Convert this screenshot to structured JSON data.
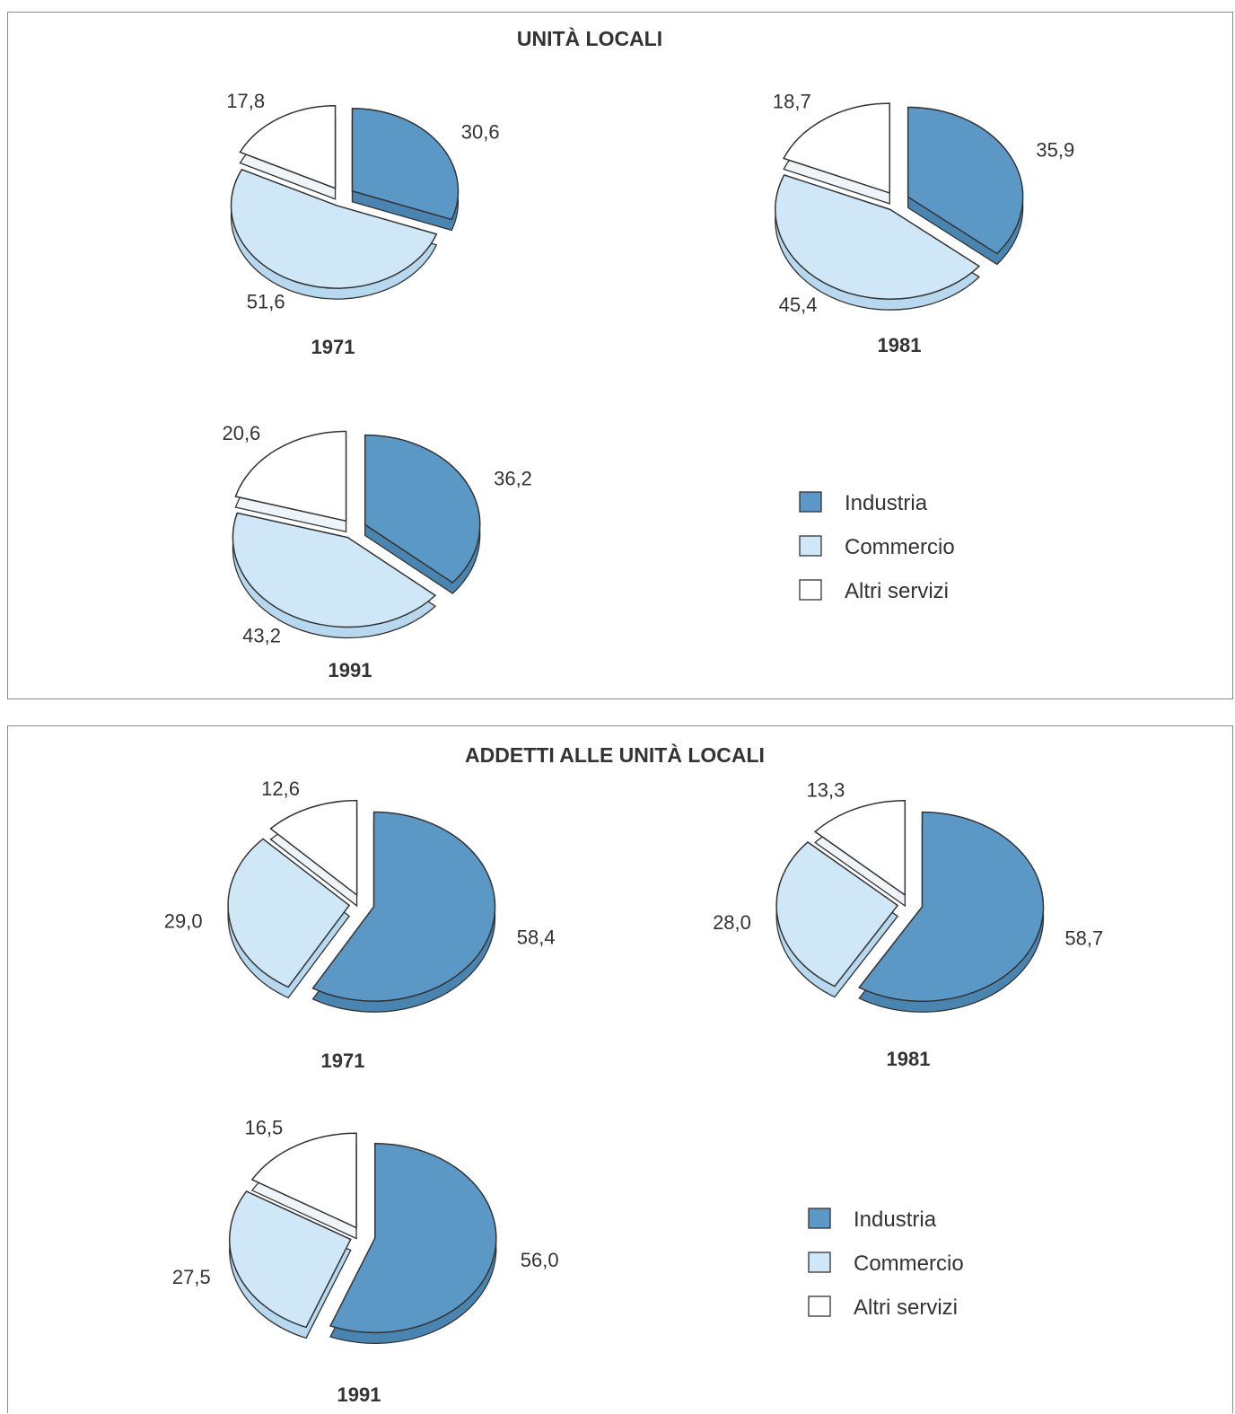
{
  "colors": {
    "Industria": "#5b98c6",
    "Industria_side": "#4a84b1",
    "Commercio": "#cfe7f6",
    "Commercio_side": "#b7d8ee",
    "Altri servizi": "#ffffff",
    "Altri servizi_side": "#eef4f8",
    "stroke": "#333333"
  },
  "legend": {
    "items": [
      "Industria",
      "Commercio",
      "Altri servizi"
    ]
  },
  "chart_data": [
    {
      "type": "pie",
      "title": "UNITÀ LOCALI",
      "legend_position": "bottom-right",
      "pies": [
        {
          "year": "1971",
          "slices": [
            {
              "name": "Industria",
              "value": 30.6,
              "label": "30,6"
            },
            {
              "name": "Commercio",
              "value": 51.6,
              "label": "51,6"
            },
            {
              "name": "Altri servizi",
              "value": 17.8,
              "label": "17,8"
            }
          ]
        },
        {
          "year": "1981",
          "slices": [
            {
              "name": "Industria",
              "value": 35.9,
              "label": "35,9"
            },
            {
              "name": "Commercio",
              "value": 45.4,
              "label": "45,4"
            },
            {
              "name": "Altri servizi",
              "value": 18.7,
              "label": "18,7"
            }
          ]
        },
        {
          "year": "1991",
          "slices": [
            {
              "name": "Industria",
              "value": 36.2,
              "label": "36,2"
            },
            {
              "name": "Commercio",
              "value": 43.2,
              "label": "43,2"
            },
            {
              "name": "Altri servizi",
              "value": 20.6,
              "label": "20,6"
            }
          ]
        }
      ]
    },
    {
      "type": "pie",
      "title": "ADDETTI ALLE UNITÀ LOCALI",
      "legend_position": "bottom-right",
      "pies": [
        {
          "year": "1971",
          "slices": [
            {
              "name": "Industria",
              "value": 58.4,
              "label": "58,4"
            },
            {
              "name": "Commercio",
              "value": 29.0,
              "label": "29,0"
            },
            {
              "name": "Altri servizi",
              "value": 12.6,
              "label": "12,6"
            }
          ]
        },
        {
          "year": "1981",
          "slices": [
            {
              "name": "Industria",
              "value": 58.7,
              "label": "58,7"
            },
            {
              "name": "Commercio",
              "value": 28.0,
              "label": "28,0"
            },
            {
              "name": "Altri servizi",
              "value": 13.3,
              "label": "13,3"
            }
          ]
        },
        {
          "year": "1991",
          "slices": [
            {
              "name": "Industria",
              "value": 56.0,
              "label": "56,0"
            },
            {
              "name": "Commercio",
              "value": 27.5,
              "label": "27,5"
            },
            {
              "name": "Altri servizi",
              "value": 16.5,
              "label": "16,5"
            }
          ]
        }
      ]
    }
  ]
}
